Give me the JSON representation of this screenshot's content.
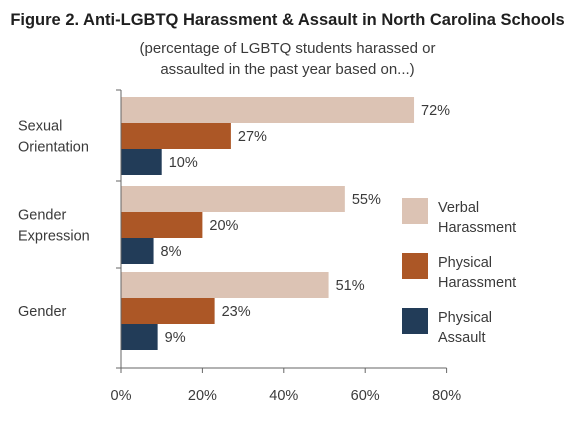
{
  "chart_data": {
    "type": "bar",
    "orientation": "horizontal",
    "title": "Figure 2. Anti-LGBTQ Harassment & Assault in North Carolina Schools",
    "subtitle_lines": [
      "(percentage of LGBTQ students harassed or",
      "assaulted in the past year based on...)"
    ],
    "categories": [
      [
        "Sexual",
        "Orientation"
      ],
      [
        "Gender",
        "Expression"
      ],
      [
        "Gender"
      ]
    ],
    "series": [
      {
        "name": [
          "Verbal",
          "Harassment"
        ],
        "color": "#dcc3b4",
        "values": [
          72,
          55,
          51
        ]
      },
      {
        "name": [
          "Physical",
          "Harassment"
        ],
        "color": "#ac5726",
        "values": [
          27,
          20,
          23
        ]
      },
      {
        "name": [
          "Physical",
          "Assault"
        ],
        "color": "#223c58",
        "values": [
          10,
          8,
          9
        ]
      }
    ],
    "value_suffix": "%",
    "xlim": [
      0,
      80
    ],
    "xticks": [
      0,
      20,
      40,
      60,
      80
    ],
    "xtick_labels": [
      "0%",
      "20%",
      "40%",
      "60%",
      "80%"
    ],
    "legend_position": "right",
    "grid": false
  }
}
